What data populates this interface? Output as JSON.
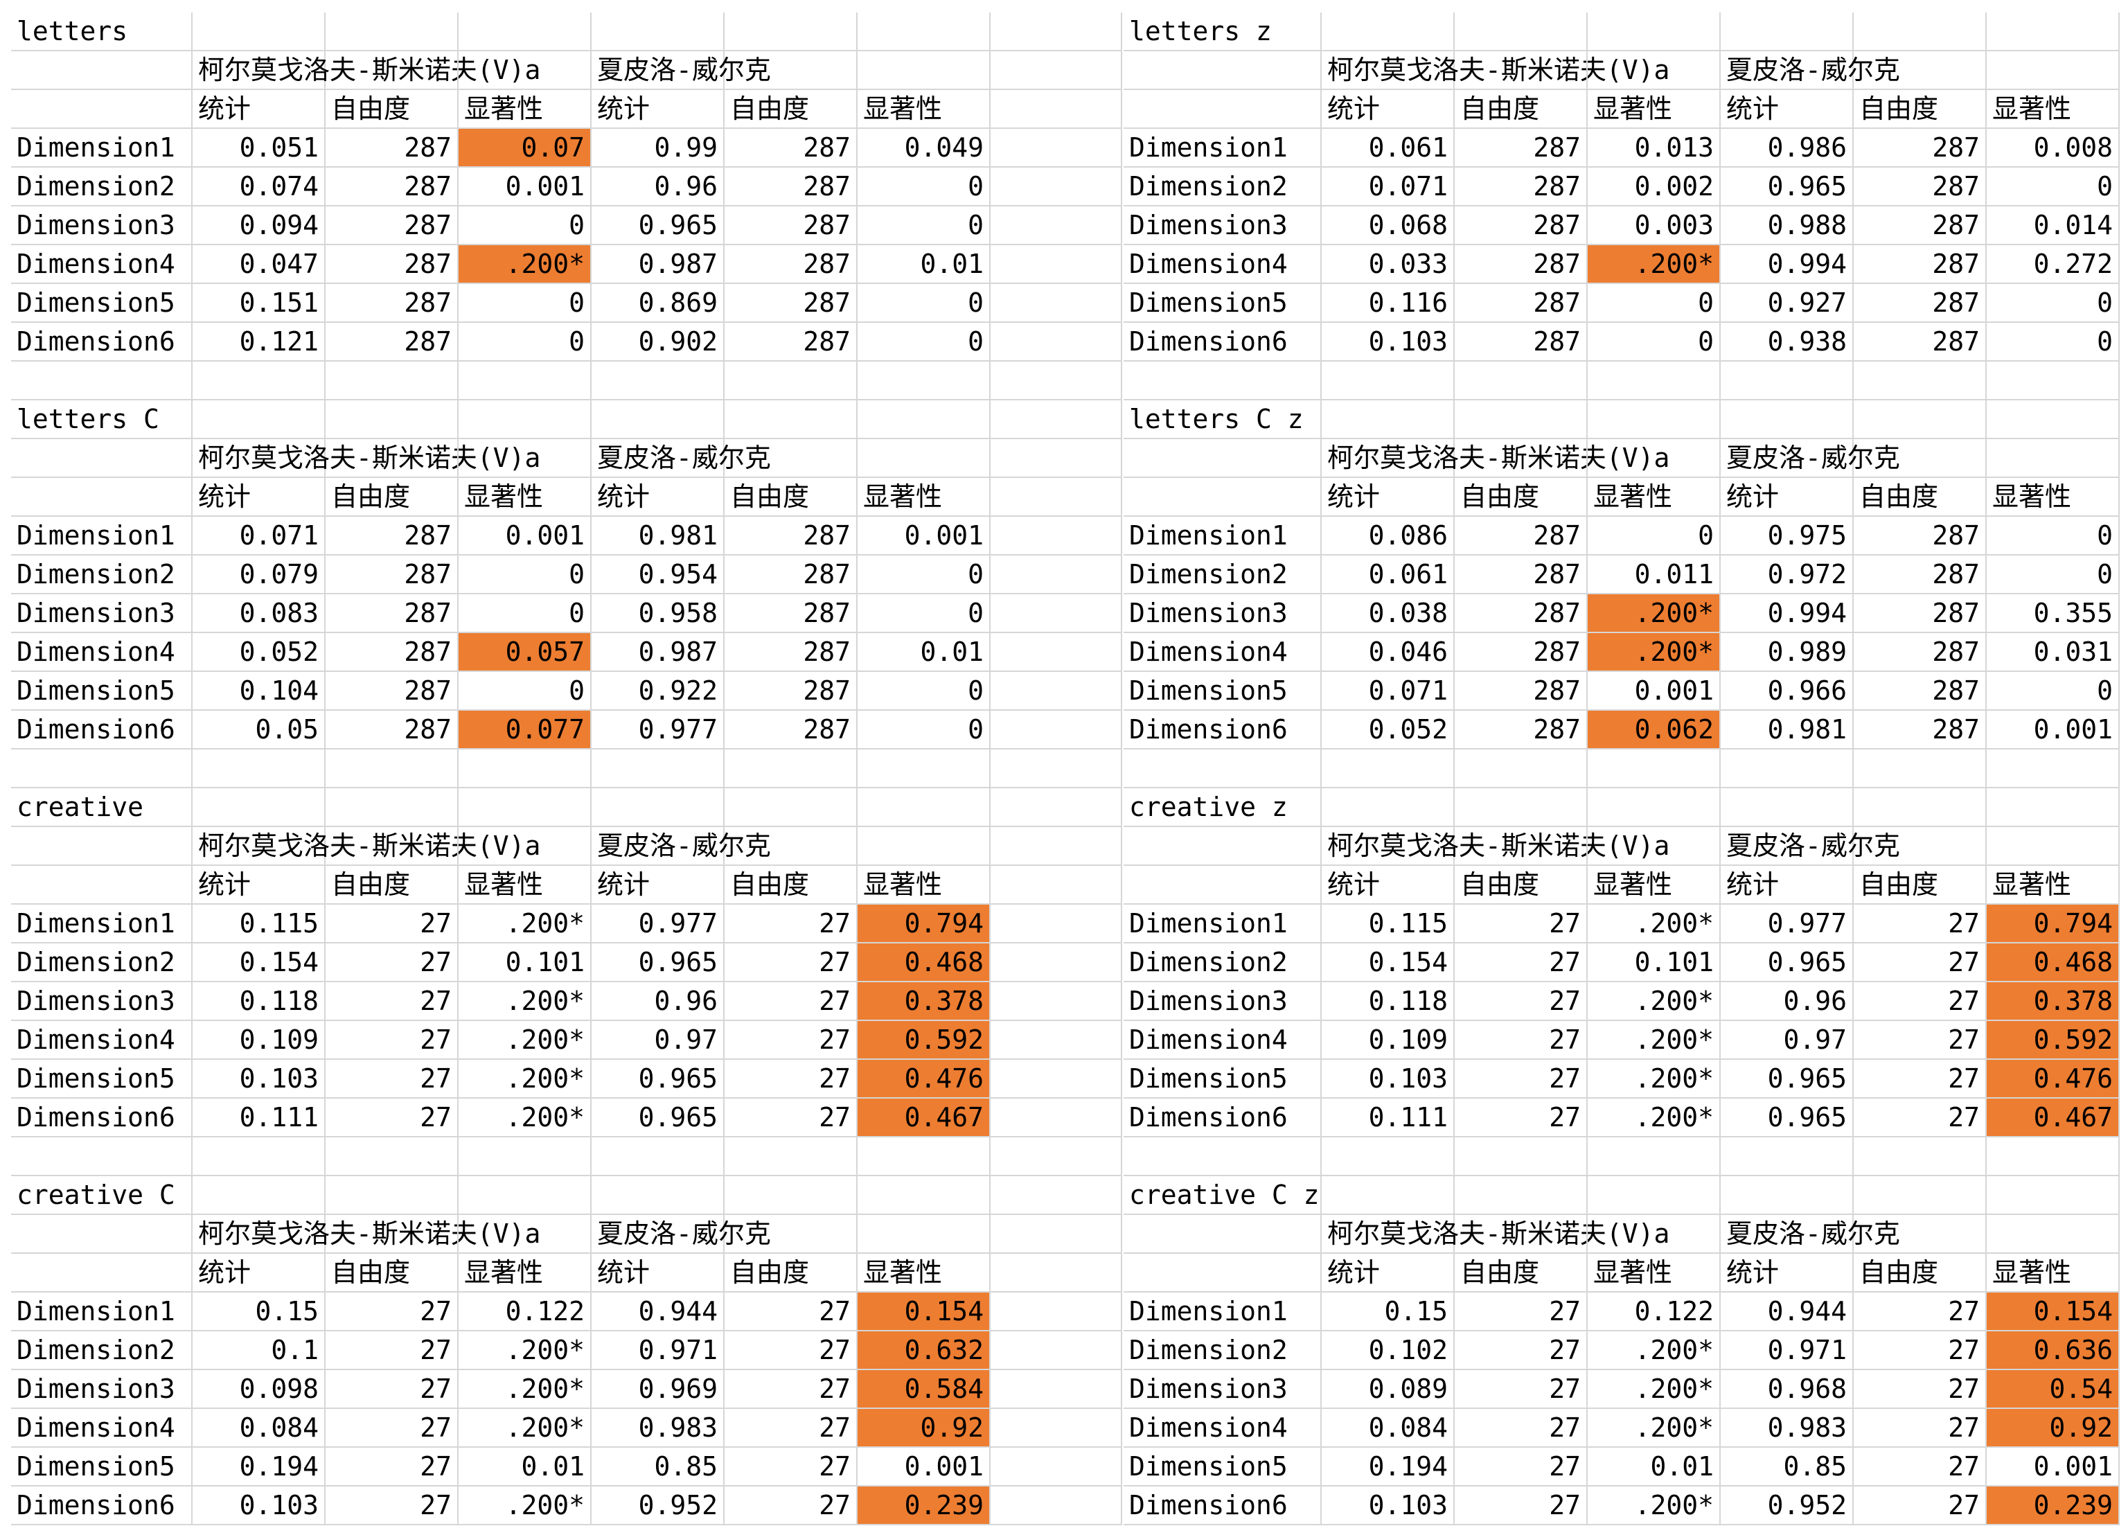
{
  "colors": {
    "highlight": "#ED7D31",
    "gridline": "#d6d6d6"
  },
  "header_labels": {
    "ks": "柯尔莫戈洛夫-斯米诺夫(V)a",
    "sw": "夏皮洛-威尔克",
    "stat": "统计",
    "df": "自由度",
    "sig": "显著性"
  },
  "blocks": [
    {
      "title": "letters",
      "rows": [
        {
          "name": "Dimension1",
          "values": [
            "0.051",
            "287",
            "0.07",
            "0.99",
            "287",
            "0.049"
          ],
          "highlight": [
            2
          ]
        },
        {
          "name": "Dimension2",
          "values": [
            "0.074",
            "287",
            "0.001",
            "0.96",
            "287",
            "0"
          ],
          "highlight": []
        },
        {
          "name": "Dimension3",
          "values": [
            "0.094",
            "287",
            "0",
            "0.965",
            "287",
            "0"
          ],
          "highlight": []
        },
        {
          "name": "Dimension4",
          "values": [
            "0.047",
            "287",
            ".200*",
            "0.987",
            "287",
            "0.01"
          ],
          "highlight": [
            2
          ]
        },
        {
          "name": "Dimension5",
          "values": [
            "0.151",
            "287",
            "0",
            "0.869",
            "287",
            "0"
          ],
          "highlight": []
        },
        {
          "name": "Dimension6",
          "values": [
            "0.121",
            "287",
            "0",
            "0.902",
            "287",
            "0"
          ],
          "highlight": []
        }
      ]
    },
    {
      "title": "letters z",
      "rows": [
        {
          "name": "Dimension1",
          "values": [
            "0.061",
            "287",
            "0.013",
            "0.986",
            "287",
            "0.008"
          ],
          "highlight": []
        },
        {
          "name": "Dimension2",
          "values": [
            "0.071",
            "287",
            "0.002",
            "0.965",
            "287",
            "0"
          ],
          "highlight": []
        },
        {
          "name": "Dimension3",
          "values": [
            "0.068",
            "287",
            "0.003",
            "0.988",
            "287",
            "0.014"
          ],
          "highlight": []
        },
        {
          "name": "Dimension4",
          "values": [
            "0.033",
            "287",
            ".200*",
            "0.994",
            "287",
            "0.272"
          ],
          "highlight": [
            2
          ]
        },
        {
          "name": "Dimension5",
          "values": [
            "0.116",
            "287",
            "0",
            "0.927",
            "287",
            "0"
          ],
          "highlight": []
        },
        {
          "name": "Dimension6",
          "values": [
            "0.103",
            "287",
            "0",
            "0.938",
            "287",
            "0"
          ],
          "highlight": []
        }
      ]
    },
    {
      "title": "letters C",
      "rows": [
        {
          "name": "Dimension1",
          "values": [
            "0.071",
            "287",
            "0.001",
            "0.981",
            "287",
            "0.001"
          ],
          "highlight": []
        },
        {
          "name": "Dimension2",
          "values": [
            "0.079",
            "287",
            "0",
            "0.954",
            "287",
            "0"
          ],
          "highlight": []
        },
        {
          "name": "Dimension3",
          "values": [
            "0.083",
            "287",
            "0",
            "0.958",
            "287",
            "0"
          ],
          "highlight": []
        },
        {
          "name": "Dimension4",
          "values": [
            "0.052",
            "287",
            "0.057",
            "0.987",
            "287",
            "0.01"
          ],
          "highlight": [
            2
          ]
        },
        {
          "name": "Dimension5",
          "values": [
            "0.104",
            "287",
            "0",
            "0.922",
            "287",
            "0"
          ],
          "highlight": []
        },
        {
          "name": "Dimension6",
          "values": [
            "0.05",
            "287",
            "0.077",
            "0.977",
            "287",
            "0"
          ],
          "highlight": [
            2
          ]
        }
      ]
    },
    {
      "title": "letters C z",
      "rows": [
        {
          "name": "Dimension1",
          "values": [
            "0.086",
            "287",
            "0",
            "0.975",
            "287",
            "0"
          ],
          "highlight": []
        },
        {
          "name": "Dimension2",
          "values": [
            "0.061",
            "287",
            "0.011",
            "0.972",
            "287",
            "0"
          ],
          "highlight": []
        },
        {
          "name": "Dimension3",
          "values": [
            "0.038",
            "287",
            ".200*",
            "0.994",
            "287",
            "0.355"
          ],
          "highlight": [
            2
          ]
        },
        {
          "name": "Dimension4",
          "values": [
            "0.046",
            "287",
            ".200*",
            "0.989",
            "287",
            "0.031"
          ],
          "highlight": [
            2
          ]
        },
        {
          "name": "Dimension5",
          "values": [
            "0.071",
            "287",
            "0.001",
            "0.966",
            "287",
            "0"
          ],
          "highlight": []
        },
        {
          "name": "Dimension6",
          "values": [
            "0.052",
            "287",
            "0.062",
            "0.981",
            "287",
            "0.001"
          ],
          "highlight": [
            2
          ]
        }
      ]
    },
    {
      "title": "creative",
      "rows": [
        {
          "name": "Dimension1",
          "values": [
            "0.115",
            "27",
            ".200*",
            "0.977",
            "27",
            "0.794"
          ],
          "highlight": [
            5
          ]
        },
        {
          "name": "Dimension2",
          "values": [
            "0.154",
            "27",
            "0.101",
            "0.965",
            "27",
            "0.468"
          ],
          "highlight": [
            5
          ]
        },
        {
          "name": "Dimension3",
          "values": [
            "0.118",
            "27",
            ".200*",
            "0.96",
            "27",
            "0.378"
          ],
          "highlight": [
            5
          ]
        },
        {
          "name": "Dimension4",
          "values": [
            "0.109",
            "27",
            ".200*",
            "0.97",
            "27",
            "0.592"
          ],
          "highlight": [
            5
          ]
        },
        {
          "name": "Dimension5",
          "values": [
            "0.103",
            "27",
            ".200*",
            "0.965",
            "27",
            "0.476"
          ],
          "highlight": [
            5
          ]
        },
        {
          "name": "Dimension6",
          "values": [
            "0.111",
            "27",
            ".200*",
            "0.965",
            "27",
            "0.467"
          ],
          "highlight": [
            5
          ]
        }
      ]
    },
    {
      "title": "creative z",
      "rows": [
        {
          "name": "Dimension1",
          "values": [
            "0.115",
            "27",
            ".200*",
            "0.977",
            "27",
            "0.794"
          ],
          "highlight": [
            5
          ]
        },
        {
          "name": "Dimension2",
          "values": [
            "0.154",
            "27",
            "0.101",
            "0.965",
            "27",
            "0.468"
          ],
          "highlight": [
            5
          ]
        },
        {
          "name": "Dimension3",
          "values": [
            "0.118",
            "27",
            ".200*",
            "0.96",
            "27",
            "0.378"
          ],
          "highlight": [
            5
          ]
        },
        {
          "name": "Dimension4",
          "values": [
            "0.109",
            "27",
            ".200*",
            "0.97",
            "27",
            "0.592"
          ],
          "highlight": [
            5
          ]
        },
        {
          "name": "Dimension5",
          "values": [
            "0.103",
            "27",
            ".200*",
            "0.965",
            "27",
            "0.476"
          ],
          "highlight": [
            5
          ]
        },
        {
          "name": "Dimension6",
          "values": [
            "0.111",
            "27",
            ".200*",
            "0.965",
            "27",
            "0.467"
          ],
          "highlight": [
            5
          ]
        }
      ]
    },
    {
      "title": "creative C",
      "rows": [
        {
          "name": "Dimension1",
          "values": [
            "0.15",
            "27",
            "0.122",
            "0.944",
            "27",
            "0.154"
          ],
          "highlight": [
            5
          ]
        },
        {
          "name": "Dimension2",
          "values": [
            "0.1",
            "27",
            ".200*",
            "0.971",
            "27",
            "0.632"
          ],
          "highlight": [
            5
          ]
        },
        {
          "name": "Dimension3",
          "values": [
            "0.098",
            "27",
            ".200*",
            "0.969",
            "27",
            "0.584"
          ],
          "highlight": [
            5
          ]
        },
        {
          "name": "Dimension4",
          "values": [
            "0.084",
            "27",
            ".200*",
            "0.983",
            "27",
            "0.92"
          ],
          "highlight": [
            5
          ]
        },
        {
          "name": "Dimension5",
          "values": [
            "0.194",
            "27",
            "0.01",
            "0.85",
            "27",
            "0.001"
          ],
          "highlight": []
        },
        {
          "name": "Dimension6",
          "values": [
            "0.103",
            "27",
            ".200*",
            "0.952",
            "27",
            "0.239"
          ],
          "highlight": [
            5
          ]
        }
      ]
    },
    {
      "title": "creative C z",
      "rows": [
        {
          "name": "Dimension1",
          "values": [
            "0.15",
            "27",
            "0.122",
            "0.944",
            "27",
            "0.154"
          ],
          "highlight": [
            5
          ]
        },
        {
          "name": "Dimension2",
          "values": [
            "0.102",
            "27",
            ".200*",
            "0.971",
            "27",
            "0.636"
          ],
          "highlight": [
            5
          ]
        },
        {
          "name": "Dimension3",
          "values": [
            "0.089",
            "27",
            ".200*",
            "0.968",
            "27",
            "0.54"
          ],
          "highlight": [
            5
          ]
        },
        {
          "name": "Dimension4",
          "values": [
            "0.084",
            "27",
            ".200*",
            "0.983",
            "27",
            "0.92"
          ],
          "highlight": [
            5
          ]
        },
        {
          "name": "Dimension5",
          "values": [
            "0.194",
            "27",
            "0.01",
            "0.85",
            "27",
            "0.001"
          ],
          "highlight": []
        },
        {
          "name": "Dimension6",
          "values": [
            "0.103",
            "27",
            ".200*",
            "0.952",
            "27",
            "0.239"
          ],
          "highlight": [
            5
          ]
        }
      ]
    }
  ]
}
